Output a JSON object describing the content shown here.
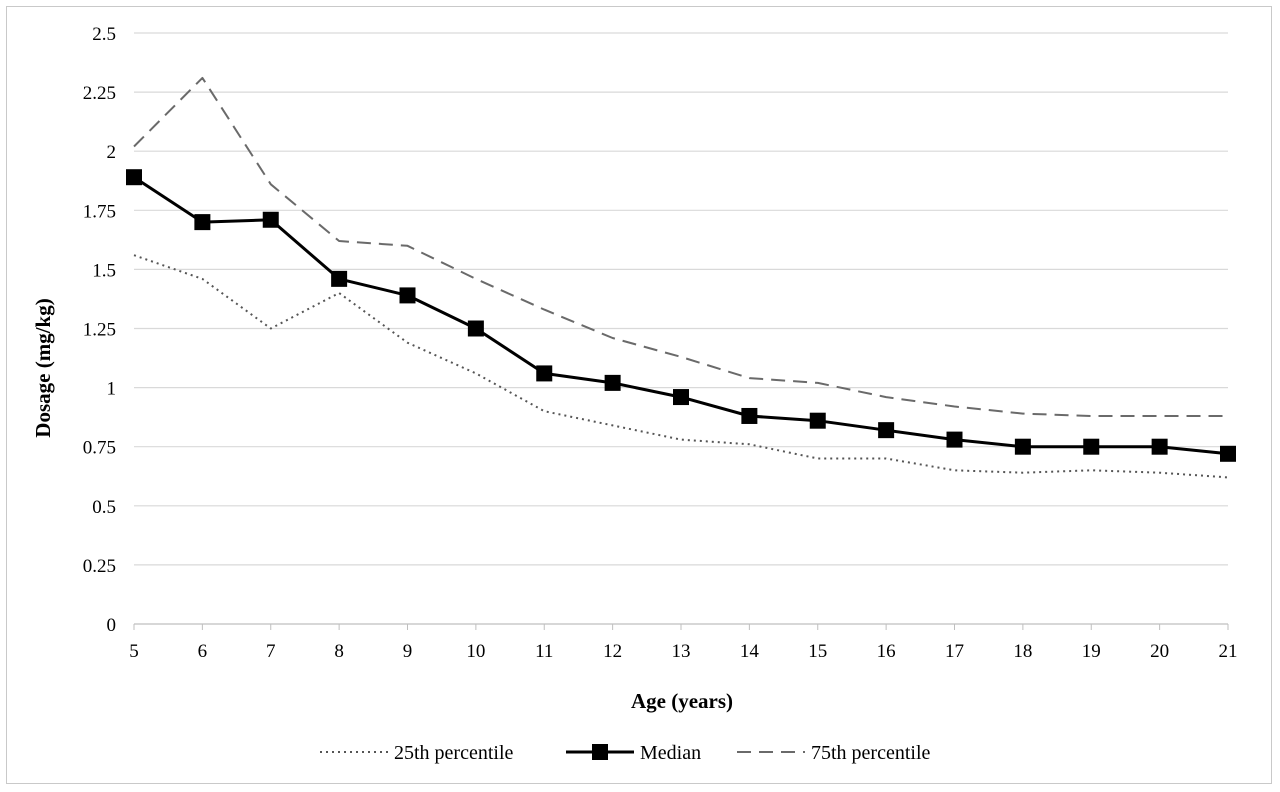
{
  "chart_data": {
    "type": "line",
    "xlabel": "Age (years)",
    "ylabel": "Dosage (mg/kg)",
    "x": [
      5,
      6,
      7,
      8,
      9,
      10,
      11,
      12,
      13,
      14,
      15,
      16,
      17,
      18,
      19,
      20,
      21
    ],
    "x_tick_labels": [
      "5",
      "6",
      "7",
      "8",
      "9",
      "10",
      "11",
      "12",
      "13",
      "14",
      "15",
      "16",
      "17",
      "18",
      "19",
      "20",
      "21"
    ],
    "y_tick_labels": [
      "0",
      "0.25",
      "0.5",
      "0.75",
      "1",
      "1.25",
      "1.5",
      "1.75",
      "2",
      "2.25",
      "2.5"
    ],
    "ylim": [
      0,
      2.5
    ],
    "grid": "horizontal",
    "legend_position": "bottom",
    "series": [
      {
        "name": "25th percentile",
        "style": "dotted",
        "color": "#555555",
        "values": [
          1.56,
          1.46,
          1.25,
          1.4,
          1.19,
          1.06,
          0.9,
          0.84,
          0.78,
          0.76,
          0.7,
          0.7,
          0.65,
          0.64,
          0.65,
          0.64,
          0.62
        ]
      },
      {
        "name": "Median",
        "style": "solid-square-markers",
        "color": "#000000",
        "values": [
          1.89,
          1.7,
          1.71,
          1.46,
          1.39,
          1.25,
          1.06,
          1.02,
          0.96,
          0.88,
          0.86,
          0.82,
          0.78,
          0.75,
          0.75,
          0.75,
          0.72
        ]
      },
      {
        "name": "75th percentile",
        "style": "dashed",
        "color": "#6a6a6a",
        "values": [
          2.02,
          2.31,
          1.86,
          1.62,
          1.6,
          1.46,
          1.33,
          1.21,
          1.13,
          1.04,
          1.02,
          0.96,
          0.92,
          0.89,
          0.88,
          0.88,
          0.88
        ]
      }
    ]
  }
}
